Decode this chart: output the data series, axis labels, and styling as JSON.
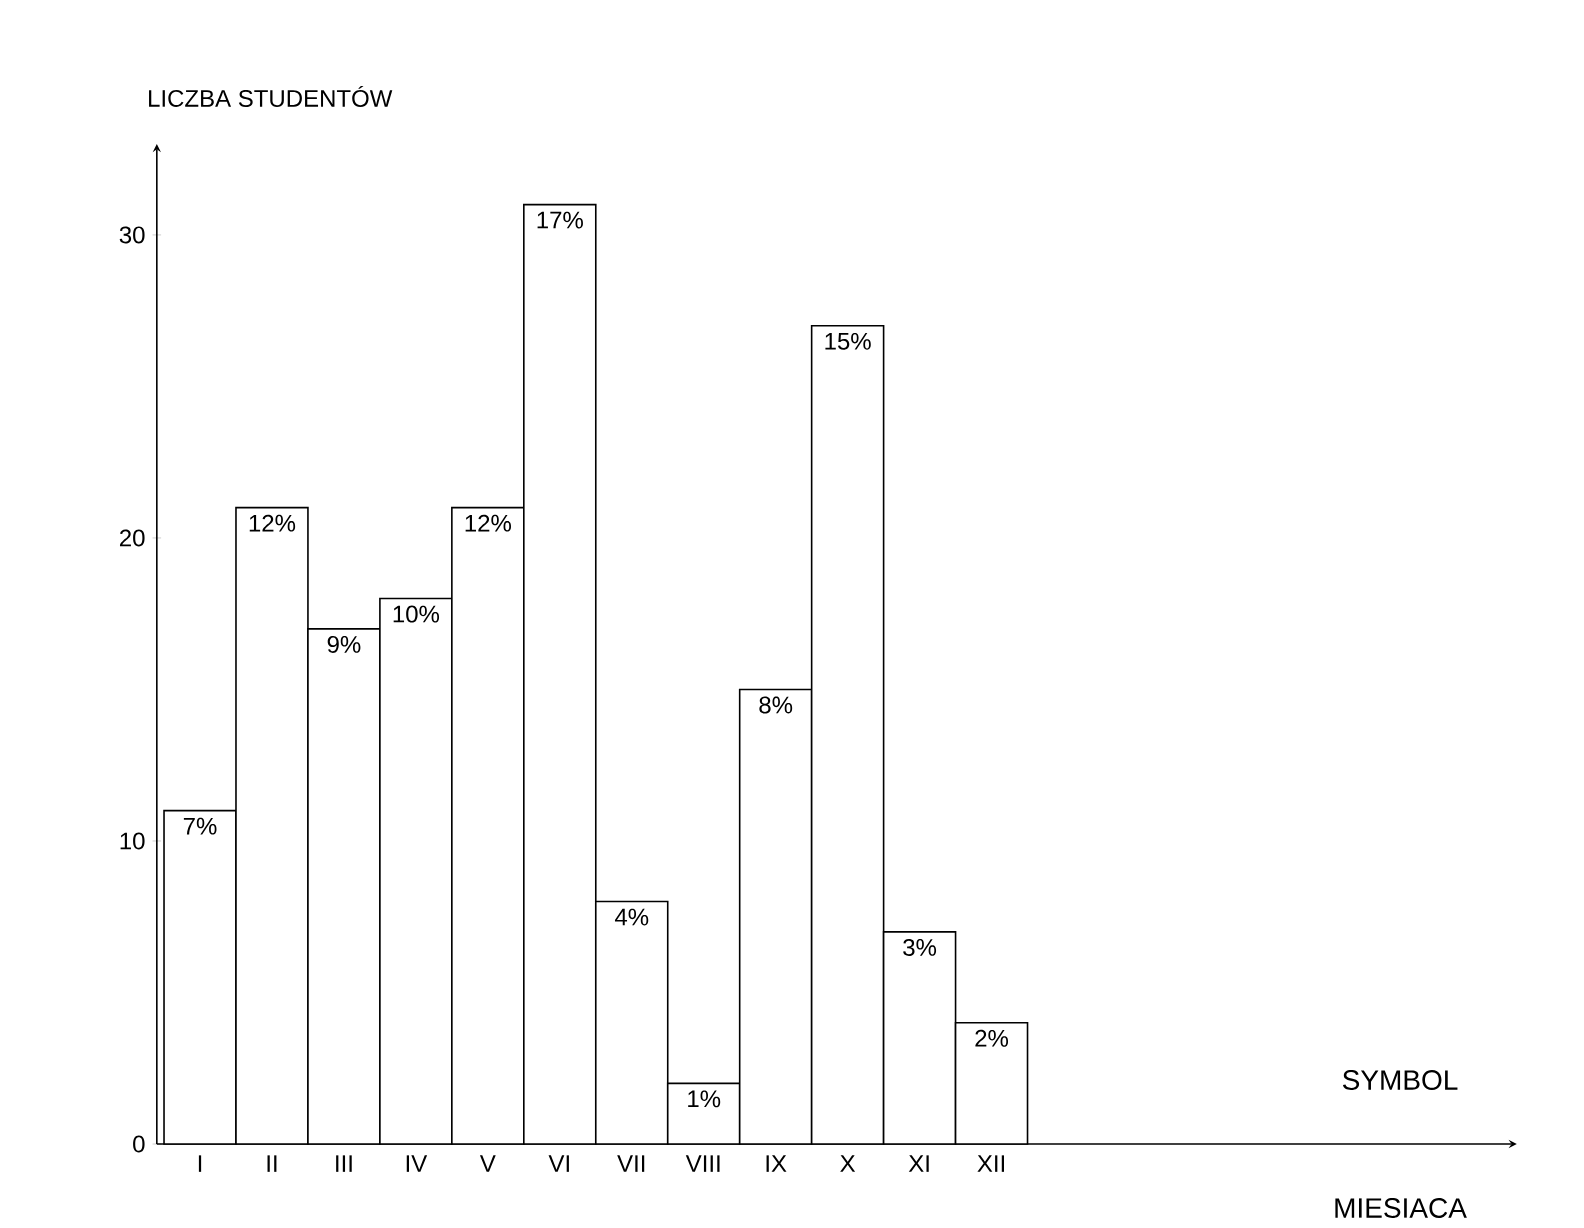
{
  "chart_data": {
    "type": "bar",
    "ylabel": "LICZBA STUDENTÓW",
    "categories": [
      "I",
      "II",
      "III",
      "IV",
      "V",
      "VI",
      "VII",
      "VIII",
      "IX",
      "X",
      "XI",
      "XII"
    ],
    "values": [
      11,
      21,
      17,
      18,
      21,
      31,
      8,
      2,
      15,
      27,
      7,
      4
    ],
    "color": "#ffffff",
    "ylim": [
      0,
      33
    ],
    "yticks": [
      0,
      10,
      20,
      30
    ],
    "annotations": [
      {
        "text": "7%",
        "x": "I",
        "y": 11
      },
      {
        "text": "12%",
        "x": "II",
        "y": 21
      },
      {
        "text": "9%",
        "x": "III",
        "y": 17
      },
      {
        "text": "10%",
        "x": "IV",
        "y": 18
      },
      {
        "text": "12%",
        "x": "V",
        "y": 21
      },
      {
        "text": "17%",
        "x": "VI",
        "y": 31
      },
      {
        "text": "4%",
        "x": "VII",
        "y": 8
      },
      {
        "text": "1%",
        "x": "VIII",
        "y": 2
      },
      {
        "text": "8%",
        "x": "IX",
        "y": 15
      },
      {
        "text": "15%",
        "x": "X",
        "y": 27
      },
      {
        "text": "3%",
        "x": "XI",
        "y": 7
      },
      {
        "text": "2%",
        "x": "XII",
        "y": 4
      },
      "SYMBOL MIESIACA"
    ]
  }
}
